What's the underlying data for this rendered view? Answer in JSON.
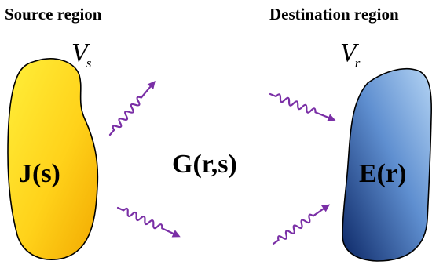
{
  "source": {
    "title": "Source region",
    "volume_symbol": "V",
    "volume_subscript": "s",
    "quantity": "J(s)",
    "fill_color_light": "#ffea2a",
    "fill_color_dark": "#f3b100"
  },
  "destination": {
    "title": "Destination region",
    "volume_symbol": "V",
    "volume_subscript": "r",
    "quantity": "E(r)",
    "fill_color_light": "#a9cdf0",
    "fill_color_dark": "#0e2a6a"
  },
  "operator": {
    "label": "G(r,s)"
  },
  "wave": {
    "color": "#7a2fa6",
    "icon": "wavy-arrow-icon"
  }
}
